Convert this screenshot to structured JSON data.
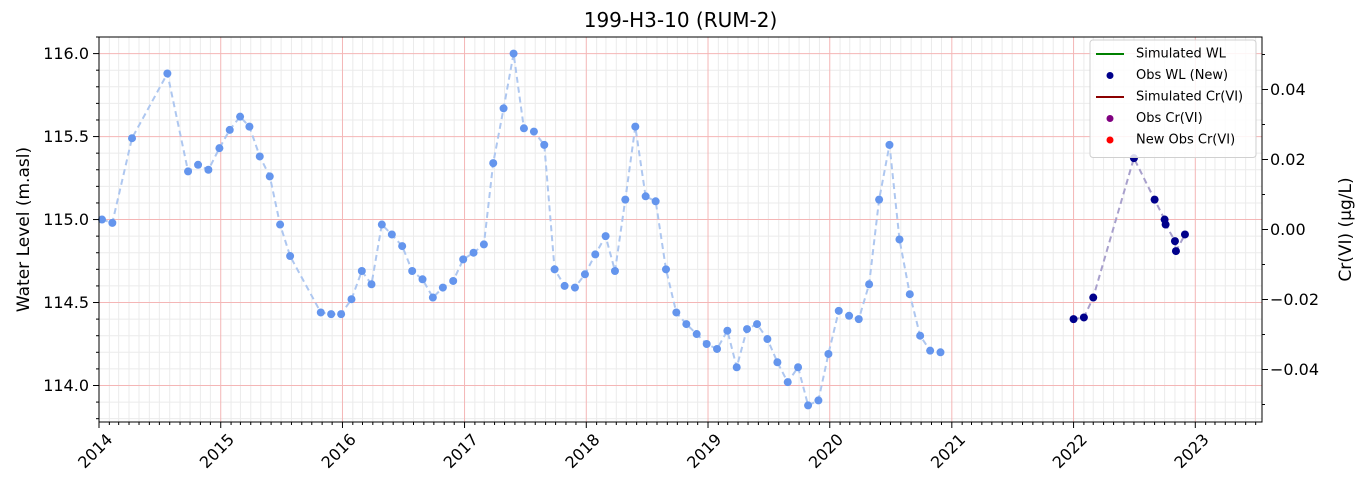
{
  "chart_data": {
    "type": "line",
    "title": "199-H3-10 (RUM-2)",
    "ylabel_left": "Water Level (m.asl)",
    "ylabel_right": "Cr(VI) (µg/L)",
    "xlim": [
      "2014-01-01",
      "2023-07-20"
    ],
    "ylim_left": [
      113.78,
      116.1
    ],
    "ylim_right": [
      -0.055,
      0.055
    ],
    "x_ticks": [
      "2014",
      "2015",
      "2016",
      "2017",
      "2018",
      "2019",
      "2020",
      "2021",
      "2022",
      "2023"
    ],
    "y_ticks_left": [
      "114.0",
      "114.5",
      "115.0",
      "115.5",
      "116.0"
    ],
    "y_ticks_right": [
      "−0.04",
      "−0.02",
      "0.00",
      "0.02",
      "0.04"
    ],
    "legend": {
      "position": "top-right",
      "entries": [
        {
          "label": "Simulated WL",
          "kind": "line",
          "color": "#008000"
        },
        {
          "label": "Obs WL (New)",
          "kind": "marker",
          "color": "#00008b"
        },
        {
          "label": "Simulated Cr(VI)",
          "kind": "line",
          "color": "#8b0000"
        },
        {
          "label": "Obs Cr(VI)",
          "kind": "marker",
          "color": "#800080"
        },
        {
          "label": "New Obs Cr(VI)",
          "kind": "marker",
          "color": "#ff0000"
        }
      ]
    },
    "series": [
      {
        "role": "observed-wl-historic",
        "color": "#6495ed",
        "line_color": "#aec7f0",
        "points": [
          [
            "2014-01-10",
            115.0
          ],
          [
            "2014-02-10",
            114.98
          ],
          [
            "2014-04-10",
            115.49
          ],
          [
            "2014-07-25",
            115.88
          ],
          [
            "2014-09-25",
            115.29
          ],
          [
            "2014-10-25",
            115.33
          ],
          [
            "2014-11-25",
            115.3
          ],
          [
            "2014-12-28",
            115.43
          ],
          [
            "2015-01-28",
            115.54
          ],
          [
            "2015-02-28",
            115.62
          ],
          [
            "2015-03-28",
            115.56
          ],
          [
            "2015-04-28",
            115.38
          ],
          [
            "2015-05-28",
            115.26
          ],
          [
            "2015-06-28",
            114.97
          ],
          [
            "2015-07-28",
            114.78
          ],
          [
            "2015-10-28",
            114.44
          ],
          [
            "2015-11-28",
            114.43
          ],
          [
            "2015-12-28",
            114.43
          ],
          [
            "2016-01-28",
            114.52
          ],
          [
            "2016-02-28",
            114.69
          ],
          [
            "2016-03-28",
            114.61
          ],
          [
            "2016-04-28",
            114.97
          ],
          [
            "2016-05-28",
            114.91
          ],
          [
            "2016-06-28",
            114.84
          ],
          [
            "2016-07-28",
            114.69
          ],
          [
            "2016-08-28",
            114.64
          ],
          [
            "2016-09-28",
            114.53
          ],
          [
            "2016-10-28",
            114.59
          ],
          [
            "2016-11-28",
            114.63
          ],
          [
            "2016-12-28",
            114.76
          ],
          [
            "2017-01-28",
            114.8
          ],
          [
            "2017-02-28",
            114.85
          ],
          [
            "2017-03-28",
            115.34
          ],
          [
            "2017-04-28",
            115.67
          ],
          [
            "2017-05-28",
            116.0
          ],
          [
            "2017-06-28",
            115.55
          ],
          [
            "2017-07-28",
            115.53
          ],
          [
            "2017-08-28",
            115.45
          ],
          [
            "2017-09-28",
            114.7
          ],
          [
            "2017-10-28",
            114.6
          ],
          [
            "2017-11-28",
            114.59
          ],
          [
            "2017-12-28",
            114.67
          ],
          [
            "2018-01-28",
            114.79
          ],
          [
            "2018-02-28",
            114.9
          ],
          [
            "2018-03-28",
            114.69
          ],
          [
            "2018-04-28",
            115.12
          ],
          [
            "2018-05-28",
            115.56
          ],
          [
            "2018-06-28",
            115.14
          ],
          [
            "2018-07-28",
            115.11
          ],
          [
            "2018-08-28",
            114.7
          ],
          [
            "2018-09-28",
            114.44
          ],
          [
            "2018-10-28",
            114.37
          ],
          [
            "2018-11-28",
            114.31
          ],
          [
            "2018-12-28",
            114.25
          ],
          [
            "2019-01-28",
            114.22
          ],
          [
            "2019-02-28",
            114.33
          ],
          [
            "2019-03-28",
            114.11
          ],
          [
            "2019-04-28",
            114.34
          ],
          [
            "2019-05-28",
            114.37
          ],
          [
            "2019-06-28",
            114.28
          ],
          [
            "2019-07-28",
            114.14
          ],
          [
            "2019-08-28",
            114.02
          ],
          [
            "2019-09-28",
            114.11
          ],
          [
            "2019-10-28",
            113.88
          ],
          [
            "2019-11-28",
            113.91
          ],
          [
            "2019-12-28",
            114.19
          ],
          [
            "2020-01-28",
            114.45
          ],
          [
            "2020-02-28",
            114.42
          ],
          [
            "2020-03-28",
            114.4
          ],
          [
            "2020-04-28",
            114.61
          ],
          [
            "2020-05-28",
            115.12
          ],
          [
            "2020-06-28",
            115.45
          ],
          [
            "2020-07-28",
            114.88
          ],
          [
            "2020-08-28",
            114.55
          ],
          [
            "2020-09-28",
            114.3
          ],
          [
            "2020-10-28",
            114.21
          ],
          [
            "2020-11-28",
            114.2
          ]
        ]
      },
      {
        "role": "observed-wl-new",
        "color": "#00008b",
        "line_color": "#a8a0cc",
        "points": [
          [
            "2022-01-01",
            114.4
          ],
          [
            "2022-02-01",
            114.41
          ],
          [
            "2022-03-01",
            114.53
          ],
          [
            "2022-07-01",
            115.37
          ],
          [
            "2022-09-01",
            115.12
          ],
          [
            "2022-10-01",
            115.0
          ],
          [
            "2022-10-04",
            114.97
          ],
          [
            "2022-11-01",
            114.87
          ],
          [
            "2022-11-04",
            114.81
          ],
          [
            "2022-12-01",
            114.91
          ]
        ]
      }
    ]
  }
}
